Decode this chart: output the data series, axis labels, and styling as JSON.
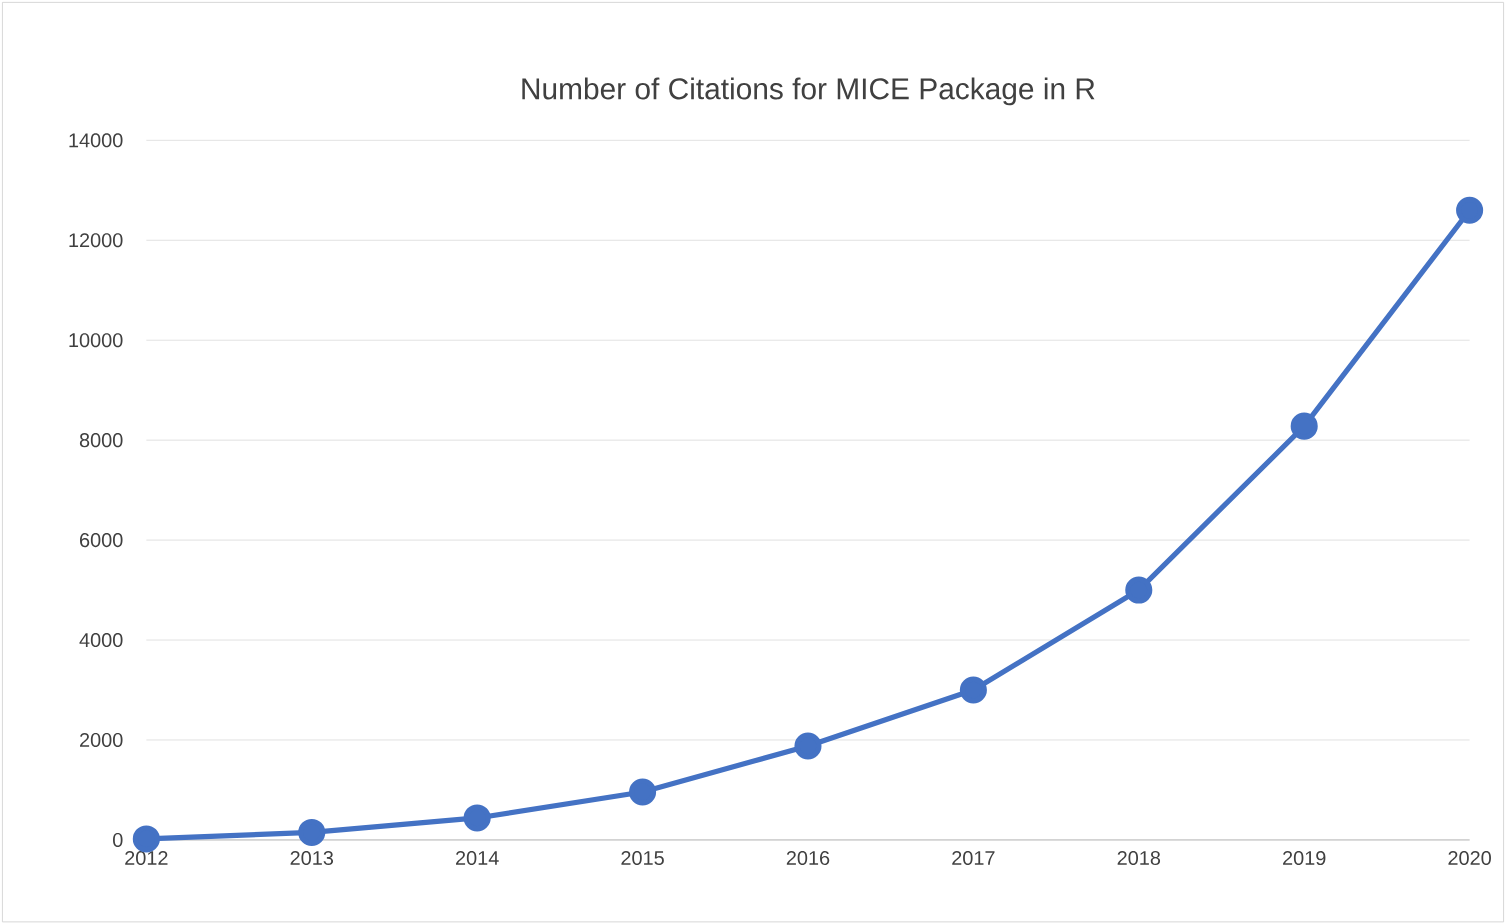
{
  "chart_data": {
    "type": "line",
    "title": "Number of Citations for MICE Package in R",
    "categories": [
      "2012",
      "2013",
      "2014",
      "2015",
      "2016",
      "2017",
      "2018",
      "2019",
      "2020"
    ],
    "values": [
      20,
      150,
      440,
      960,
      1880,
      3000,
      5000,
      8280,
      12600
    ],
    "color": "#4472c4",
    "marker": "circle",
    "line_style": "solid",
    "grid": "y",
    "legend": false,
    "ylim": [
      0,
      14000
    ],
    "yticks": [
      0,
      2000,
      4000,
      6000,
      8000,
      10000,
      12000,
      14000
    ]
  }
}
